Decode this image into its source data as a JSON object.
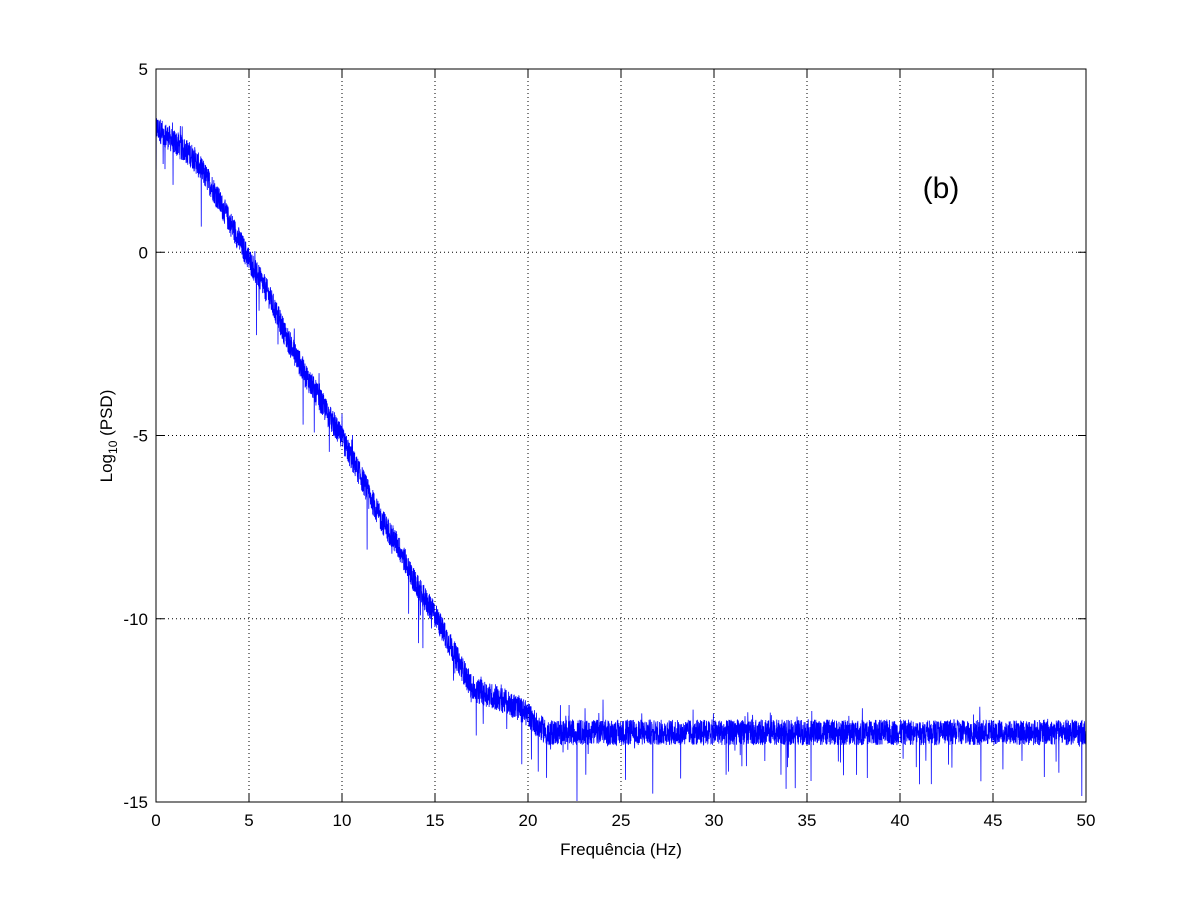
{
  "chart_data": {
    "type": "line",
    "title": "",
    "xlabel": "Frequência (Hz)",
    "ylabel_base": "Log",
    "ylabel_sub": "10",
    "ylabel_suffix": " (PSD)",
    "annotation": "(b)",
    "xlim": [
      0,
      50
    ],
    "ylim": [
      -15,
      5
    ],
    "xticks": [
      0,
      5,
      10,
      15,
      20,
      25,
      30,
      35,
      40,
      45,
      50
    ],
    "yticks": [
      5,
      0,
      -5,
      -10,
      -15
    ],
    "grid": true,
    "grid_style": "dotted",
    "series": [
      {
        "color": "#0000ff",
        "x": [
          0,
          1,
          2,
          3,
          4,
          5,
          6,
          7,
          8,
          9,
          10,
          11,
          12,
          13,
          14,
          15,
          16,
          17,
          18,
          19,
          20,
          20.5,
          21,
          22,
          24,
          26,
          28,
          30,
          32,
          34,
          36,
          38,
          40,
          42,
          44,
          46,
          48,
          50
        ],
        "y": [
          3.4,
          3.0,
          2.6,
          1.8,
          0.8,
          -0.2,
          -1.1,
          -2.3,
          -3.3,
          -4.2,
          -5.1,
          -6.1,
          -7.2,
          -8.0,
          -9.1,
          -9.9,
          -10.9,
          -11.9,
          -12.1,
          -12.3,
          -12.6,
          -12.9,
          -13.1,
          -13.1,
          -13.1,
          -13.1,
          -13.1,
          -13.1,
          -13.1,
          -13.1,
          -13.1,
          -13.1,
          -13.1,
          -13.1,
          -13.1,
          -13.1,
          -13.1,
          -13.1
        ],
        "noise_amplitude": 0.35
      }
    ]
  }
}
